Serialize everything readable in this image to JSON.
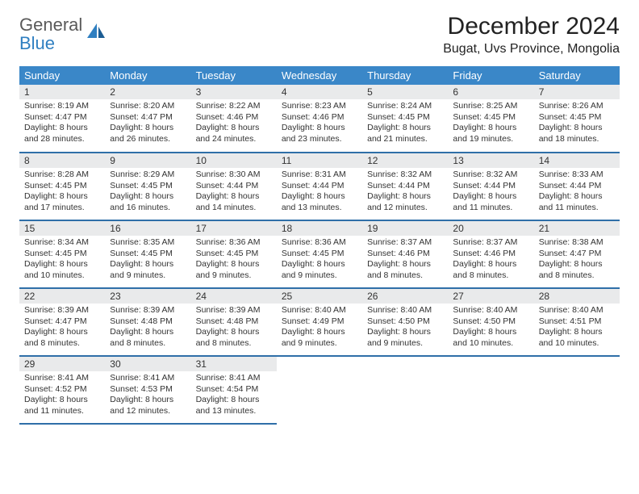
{
  "logo": {
    "general": "General",
    "blue": "Blue"
  },
  "title": "December 2024",
  "location": "Bugat, Uvs Province, Mongolia",
  "colors": {
    "header_bg": "#3a87c8",
    "header_text": "#ffffff",
    "daynum_bg": "#e9eaeb",
    "row_border": "#2f6fa8",
    "logo_blue": "#2f7fc1",
    "logo_gray": "#5a5a5a"
  },
  "weekdays": [
    "Sunday",
    "Monday",
    "Tuesday",
    "Wednesday",
    "Thursday",
    "Friday",
    "Saturday"
  ],
  "weeks": [
    [
      {
        "n": "1",
        "sr": "Sunrise: 8:19 AM",
        "ss": "Sunset: 4:47 PM",
        "d1": "Daylight: 8 hours",
        "d2": "and 28 minutes."
      },
      {
        "n": "2",
        "sr": "Sunrise: 8:20 AM",
        "ss": "Sunset: 4:47 PM",
        "d1": "Daylight: 8 hours",
        "d2": "and 26 minutes."
      },
      {
        "n": "3",
        "sr": "Sunrise: 8:22 AM",
        "ss": "Sunset: 4:46 PM",
        "d1": "Daylight: 8 hours",
        "d2": "and 24 minutes."
      },
      {
        "n": "4",
        "sr": "Sunrise: 8:23 AM",
        "ss": "Sunset: 4:46 PM",
        "d1": "Daylight: 8 hours",
        "d2": "and 23 minutes."
      },
      {
        "n": "5",
        "sr": "Sunrise: 8:24 AM",
        "ss": "Sunset: 4:45 PM",
        "d1": "Daylight: 8 hours",
        "d2": "and 21 minutes."
      },
      {
        "n": "6",
        "sr": "Sunrise: 8:25 AM",
        "ss": "Sunset: 4:45 PM",
        "d1": "Daylight: 8 hours",
        "d2": "and 19 minutes."
      },
      {
        "n": "7",
        "sr": "Sunrise: 8:26 AM",
        "ss": "Sunset: 4:45 PM",
        "d1": "Daylight: 8 hours",
        "d2": "and 18 minutes."
      }
    ],
    [
      {
        "n": "8",
        "sr": "Sunrise: 8:28 AM",
        "ss": "Sunset: 4:45 PM",
        "d1": "Daylight: 8 hours",
        "d2": "and 17 minutes."
      },
      {
        "n": "9",
        "sr": "Sunrise: 8:29 AM",
        "ss": "Sunset: 4:45 PM",
        "d1": "Daylight: 8 hours",
        "d2": "and 16 minutes."
      },
      {
        "n": "10",
        "sr": "Sunrise: 8:30 AM",
        "ss": "Sunset: 4:44 PM",
        "d1": "Daylight: 8 hours",
        "d2": "and 14 minutes."
      },
      {
        "n": "11",
        "sr": "Sunrise: 8:31 AM",
        "ss": "Sunset: 4:44 PM",
        "d1": "Daylight: 8 hours",
        "d2": "and 13 minutes."
      },
      {
        "n": "12",
        "sr": "Sunrise: 8:32 AM",
        "ss": "Sunset: 4:44 PM",
        "d1": "Daylight: 8 hours",
        "d2": "and 12 minutes."
      },
      {
        "n": "13",
        "sr": "Sunrise: 8:32 AM",
        "ss": "Sunset: 4:44 PM",
        "d1": "Daylight: 8 hours",
        "d2": "and 11 minutes."
      },
      {
        "n": "14",
        "sr": "Sunrise: 8:33 AM",
        "ss": "Sunset: 4:44 PM",
        "d1": "Daylight: 8 hours",
        "d2": "and 11 minutes."
      }
    ],
    [
      {
        "n": "15",
        "sr": "Sunrise: 8:34 AM",
        "ss": "Sunset: 4:45 PM",
        "d1": "Daylight: 8 hours",
        "d2": "and 10 minutes."
      },
      {
        "n": "16",
        "sr": "Sunrise: 8:35 AM",
        "ss": "Sunset: 4:45 PM",
        "d1": "Daylight: 8 hours",
        "d2": "and 9 minutes."
      },
      {
        "n": "17",
        "sr": "Sunrise: 8:36 AM",
        "ss": "Sunset: 4:45 PM",
        "d1": "Daylight: 8 hours",
        "d2": "and 9 minutes."
      },
      {
        "n": "18",
        "sr": "Sunrise: 8:36 AM",
        "ss": "Sunset: 4:45 PM",
        "d1": "Daylight: 8 hours",
        "d2": "and 9 minutes."
      },
      {
        "n": "19",
        "sr": "Sunrise: 8:37 AM",
        "ss": "Sunset: 4:46 PM",
        "d1": "Daylight: 8 hours",
        "d2": "and 8 minutes."
      },
      {
        "n": "20",
        "sr": "Sunrise: 8:37 AM",
        "ss": "Sunset: 4:46 PM",
        "d1": "Daylight: 8 hours",
        "d2": "and 8 minutes."
      },
      {
        "n": "21",
        "sr": "Sunrise: 8:38 AM",
        "ss": "Sunset: 4:47 PM",
        "d1": "Daylight: 8 hours",
        "d2": "and 8 minutes."
      }
    ],
    [
      {
        "n": "22",
        "sr": "Sunrise: 8:39 AM",
        "ss": "Sunset: 4:47 PM",
        "d1": "Daylight: 8 hours",
        "d2": "and 8 minutes."
      },
      {
        "n": "23",
        "sr": "Sunrise: 8:39 AM",
        "ss": "Sunset: 4:48 PM",
        "d1": "Daylight: 8 hours",
        "d2": "and 8 minutes."
      },
      {
        "n": "24",
        "sr": "Sunrise: 8:39 AM",
        "ss": "Sunset: 4:48 PM",
        "d1": "Daylight: 8 hours",
        "d2": "and 8 minutes."
      },
      {
        "n": "25",
        "sr": "Sunrise: 8:40 AM",
        "ss": "Sunset: 4:49 PM",
        "d1": "Daylight: 8 hours",
        "d2": "and 9 minutes."
      },
      {
        "n": "26",
        "sr": "Sunrise: 8:40 AM",
        "ss": "Sunset: 4:50 PM",
        "d1": "Daylight: 8 hours",
        "d2": "and 9 minutes."
      },
      {
        "n": "27",
        "sr": "Sunrise: 8:40 AM",
        "ss": "Sunset: 4:50 PM",
        "d1": "Daylight: 8 hours",
        "d2": "and 10 minutes."
      },
      {
        "n": "28",
        "sr": "Sunrise: 8:40 AM",
        "ss": "Sunset: 4:51 PM",
        "d1": "Daylight: 8 hours",
        "d2": "and 10 minutes."
      }
    ],
    [
      {
        "n": "29",
        "sr": "Sunrise: 8:41 AM",
        "ss": "Sunset: 4:52 PM",
        "d1": "Daylight: 8 hours",
        "d2": "and 11 minutes."
      },
      {
        "n": "30",
        "sr": "Sunrise: 8:41 AM",
        "ss": "Sunset: 4:53 PM",
        "d1": "Daylight: 8 hours",
        "d2": "and 12 minutes."
      },
      {
        "n": "31",
        "sr": "Sunrise: 8:41 AM",
        "ss": "Sunset: 4:54 PM",
        "d1": "Daylight: 8 hours",
        "d2": "and 13 minutes."
      },
      null,
      null,
      null,
      null
    ]
  ]
}
